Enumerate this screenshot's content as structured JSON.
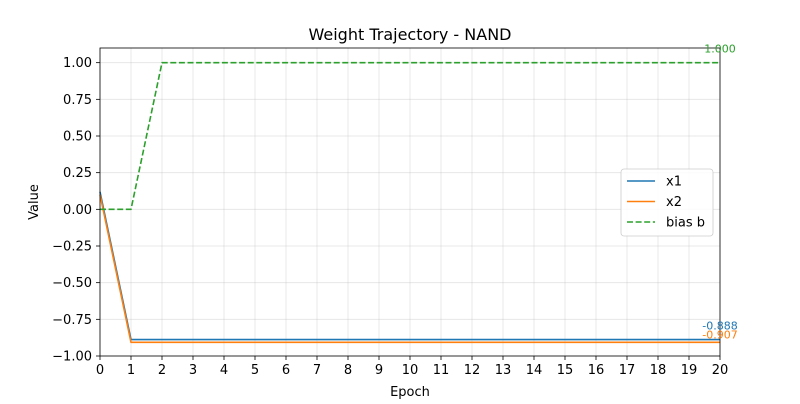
{
  "chart_data": {
    "type": "line",
    "title": "Weight Trajectory - NAND",
    "xlabel": "Epoch",
    "ylabel": "Value",
    "xlim": [
      0,
      20
    ],
    "ylim": [
      -1.0,
      1.1
    ],
    "grid": true,
    "legend_position": "center-right",
    "x_ticks": [
      0,
      1,
      2,
      3,
      4,
      5,
      6,
      7,
      8,
      9,
      10,
      11,
      12,
      13,
      14,
      15,
      16,
      17,
      18,
      19,
      20
    ],
    "y_ticks": [
      -1.0,
      -0.75,
      -0.5,
      -0.25,
      0.0,
      0.25,
      0.5,
      0.75,
      1.0
    ],
    "x": [
      0,
      1,
      2,
      3,
      4,
      5,
      6,
      7,
      8,
      9,
      10,
      11,
      12,
      13,
      14,
      15,
      16,
      17,
      18,
      19,
      20
    ],
    "series": [
      {
        "name": "x1",
        "color": "#1f77b4",
        "dash": false,
        "values": [
          0.12,
          -0.888,
          -0.888,
          -0.888,
          -0.888,
          -0.888,
          -0.888,
          -0.888,
          -0.888,
          -0.888,
          -0.888,
          -0.888,
          -0.888,
          -0.888,
          -0.888,
          -0.888,
          -0.888,
          -0.888,
          -0.888,
          -0.888,
          -0.888
        ],
        "end_label": "-0.888"
      },
      {
        "name": "x2",
        "color": "#ff7f0e",
        "dash": false,
        "values": [
          0.1,
          -0.907,
          -0.907,
          -0.907,
          -0.907,
          -0.907,
          -0.907,
          -0.907,
          -0.907,
          -0.907,
          -0.907,
          -0.907,
          -0.907,
          -0.907,
          -0.907,
          -0.907,
          -0.907,
          -0.907,
          -0.907,
          -0.907,
          -0.907
        ],
        "end_label": "-0.907"
      },
      {
        "name": "bias b",
        "color": "#2ca02c",
        "dash": true,
        "values": [
          0.0,
          0.0,
          1.0,
          1.0,
          1.0,
          1.0,
          1.0,
          1.0,
          1.0,
          1.0,
          1.0,
          1.0,
          1.0,
          1.0,
          1.0,
          1.0,
          1.0,
          1.0,
          1.0,
          1.0,
          1.0
        ],
        "end_label": "1.000"
      }
    ]
  }
}
